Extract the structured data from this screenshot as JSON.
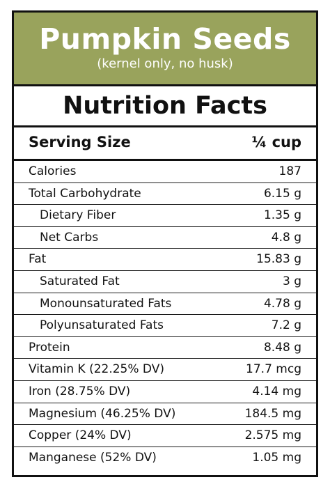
{
  "colors": {
    "banner_background": "#99a35c",
    "banner_text": "#ffffff",
    "border": "#111111"
  },
  "header": {
    "product_name": "Pumpkin Seeds",
    "product_note": "(kernel only, no husk)",
    "title": "Nutrition Facts"
  },
  "serving": {
    "label": "Serving Size",
    "value": "¼ cup"
  },
  "rows": [
    {
      "label": "Calories",
      "value": "187",
      "indent": false
    },
    {
      "label": "Total Carbohydrate",
      "value": "6.15 g",
      "indent": false
    },
    {
      "label": "Dietary Fiber",
      "value": "1.35 g",
      "indent": true
    },
    {
      "label": "Net Carbs",
      "value": "4.8 g",
      "indent": true
    },
    {
      "label": "Fat",
      "value": "15.83 g",
      "indent": false
    },
    {
      "label": "Saturated Fat",
      "value": "3 g",
      "indent": true
    },
    {
      "label": "Monounsaturated Fats",
      "value": "4.78 g",
      "indent": true
    },
    {
      "label": "Polyunsaturated Fats",
      "value": "7.2 g",
      "indent": true
    },
    {
      "label": "Protein",
      "value": "8.48 g",
      "indent": false
    },
    {
      "label": "Vitamin K (22.25% DV)",
      "value": "17.7 mcg",
      "indent": false
    },
    {
      "label": "Iron (28.75% DV)",
      "value": "4.14 mg",
      "indent": false
    },
    {
      "label": "Magnesium (46.25% DV)",
      "value": "184.5 mg",
      "indent": false
    },
    {
      "label": "Copper (24% DV)",
      "value": "2.575 mg",
      "indent": false
    },
    {
      "label": "Manganese (52% DV)",
      "value": "1.05 mg",
      "indent": false
    }
  ]
}
